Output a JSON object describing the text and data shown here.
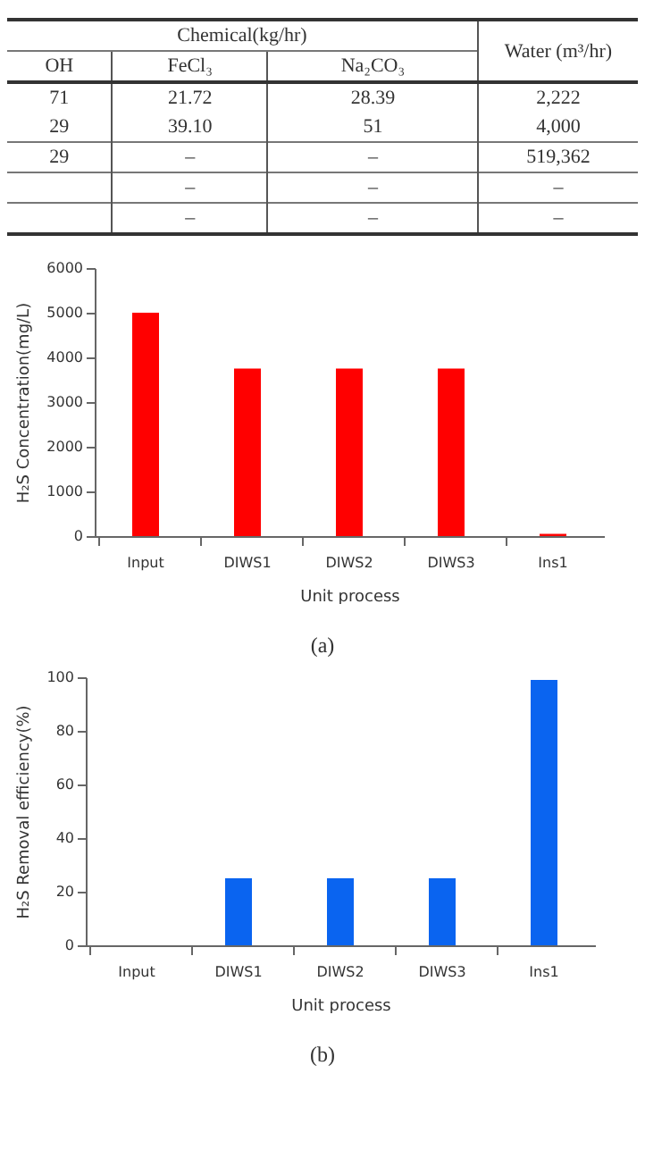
{
  "chart_data": [
    {
      "type": "other",
      "annotations": [
        "Chemical(kg/hr)",
        "Water (m³/hr)",
        "OH",
        "FeCl₃",
        "Na₂CO₃",
        "71",
        "21.72",
        "28.39",
        "2,222",
        "29",
        "39.10",
        "51",
        "4,000",
        "29",
        "–",
        "–",
        "519,362",
        "–",
        "–",
        "–",
        "–",
        "–",
        "–"
      ]
    },
    {
      "type": "bar",
      "categories": [
        "Input",
        "DIWS1",
        "DIWS2",
        "DIWS3",
        "Ins1"
      ],
      "values": [
        5000,
        3750,
        3750,
        3750,
        50
      ],
      "color": "#ff0000",
      "ylim": [
        0,
        6000
      ],
      "yticks": [
        0,
        1000,
        2000,
        3000,
        4000,
        5000,
        6000
      ],
      "xlabel": "Unit process",
      "ylabel": "H₂S Concentration(mg/L)",
      "annotations": [
        "(a)"
      ]
    },
    {
      "type": "bar",
      "categories": [
        "Input",
        "DIWS1",
        "DIWS2",
        "DIWS3",
        "Ins1"
      ],
      "values": [
        0,
        25,
        25,
        25,
        99
      ],
      "color": "#0a64f0",
      "ylim": [
        0,
        100
      ],
      "yticks": [
        0,
        20,
        40,
        60,
        80,
        100
      ],
      "xlabel": "Unit process",
      "ylabel": "H₂S Removal efficiency(%)",
      "annotations": [
        "(b)"
      ]
    }
  ]
}
